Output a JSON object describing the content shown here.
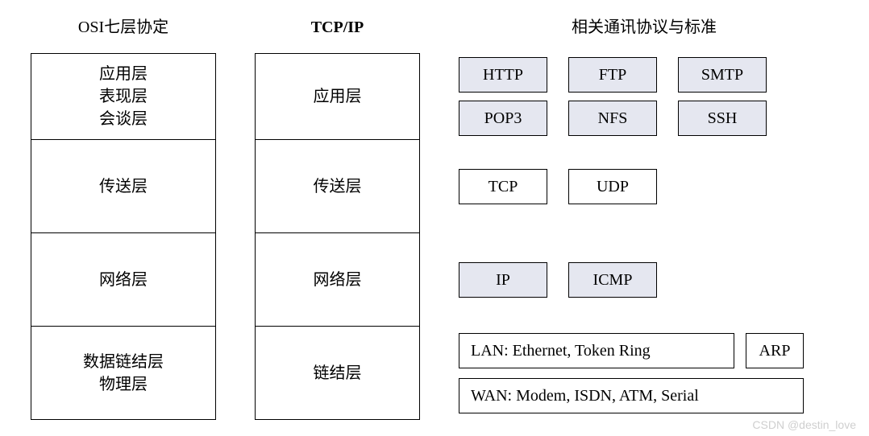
{
  "columns": {
    "osi": {
      "title": "OSI七层协定",
      "layers": [
        {
          "lines": [
            "应用层",
            "表现层",
            "会谈层"
          ],
          "h": "h-app"
        },
        {
          "lines": [
            "传送层"
          ],
          "h": "h-reg"
        },
        {
          "lines": [
            "网络层"
          ],
          "h": "h-reg"
        },
        {
          "lines": [
            "数据链结层",
            "物理层"
          ],
          "h": "h-reg"
        }
      ]
    },
    "tcpip": {
      "title": "TCP/IP",
      "layers": [
        {
          "lines": [
            "应用层"
          ],
          "h": "h-app"
        },
        {
          "lines": [
            "传送层"
          ],
          "h": "h-reg"
        },
        {
          "lines": [
            "网络层"
          ],
          "h": "h-reg"
        },
        {
          "lines": [
            "链结层"
          ],
          "h": "h-reg"
        }
      ]
    },
    "protocols": {
      "title": "相关通讯协议与标准",
      "app": {
        "row1": [
          {
            "label": "HTTP",
            "shaded": true
          },
          {
            "label": "FTP",
            "shaded": true
          },
          {
            "label": "SMTP",
            "shaded": true
          }
        ],
        "row2": [
          {
            "label": "POP3",
            "shaded": true
          },
          {
            "label": "NFS",
            "shaded": true
          },
          {
            "label": "SSH",
            "shaded": true
          }
        ]
      },
      "transport": [
        {
          "label": "TCP",
          "shaded": false
        },
        {
          "label": "UDP",
          "shaded": false
        }
      ],
      "network": [
        {
          "label": "IP",
          "shaded": true
        },
        {
          "label": "ICMP",
          "shaded": true
        }
      ],
      "link": {
        "lan": "LAN: Ethernet, Token Ring",
        "arp": "ARP",
        "wan": "WAN: Modem, ISDN, ATM, Serial"
      }
    }
  },
  "style": {
    "border_color": "#000000",
    "shaded_bg": "#e5e7f0",
    "bg": "#ffffff",
    "font_cn": "SimSun",
    "font_en": "Times New Roman",
    "font_size": 20
  },
  "watermark": "CSDN @destin_love"
}
